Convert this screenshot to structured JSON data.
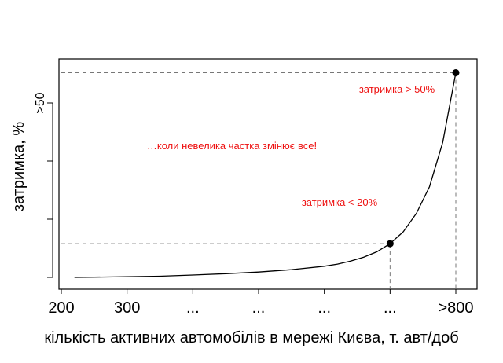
{
  "chart_data": {
    "type": "line",
    "title": "",
    "xlabel": "кількість активних автомобілів в мережі Києва, т. авт/доб",
    "ylabel": "затримка, %",
    "x_tick_values": [
      200,
      300,
      400,
      500,
      600,
      700,
      800
    ],
    "x_tick_labels": [
      "200",
      "300",
      "...",
      "...",
      "...",
      "...",
      ">800"
    ],
    "y_tick_values": [
      0,
      25,
      50,
      75
    ],
    "y_tick_labels": [
      "",
      "",
      "",
      ">50"
    ],
    "xlim": [
      200,
      800
    ],
    "ylim": [
      0,
      100
    ],
    "grid": false,
    "legend": "none",
    "series": [
      {
        "color": "#000000",
        "x": [
          220,
          250,
          300,
          350,
          400,
          450,
          500,
          550,
          600,
          620,
          640,
          660,
          680,
          700,
          720,
          740,
          760,
          780,
          800
        ],
        "y": [
          0,
          0.1,
          0.3,
          0.5,
          1.0,
          1.6,
          2.3,
          3.3,
          4.8,
          5.7,
          7.0,
          8.7,
          11.0,
          14.5,
          19.6,
          27.5,
          39.0,
          58.0,
          88.0
        ]
      }
    ],
    "markers": [
      {
        "x": 700,
        "y": 14.5,
        "label": "затримка < 20%"
      },
      {
        "x": 800,
        "y": 88.0,
        "label": "затримка > 50%"
      }
    ],
    "annotations": [
      {
        "text": "…коли невелика частка змінює все!"
      }
    ],
    "colors": {
      "line": "#000000",
      "annotation": "#ee1111",
      "guide": "#777777",
      "axis": "#000000"
    }
  }
}
